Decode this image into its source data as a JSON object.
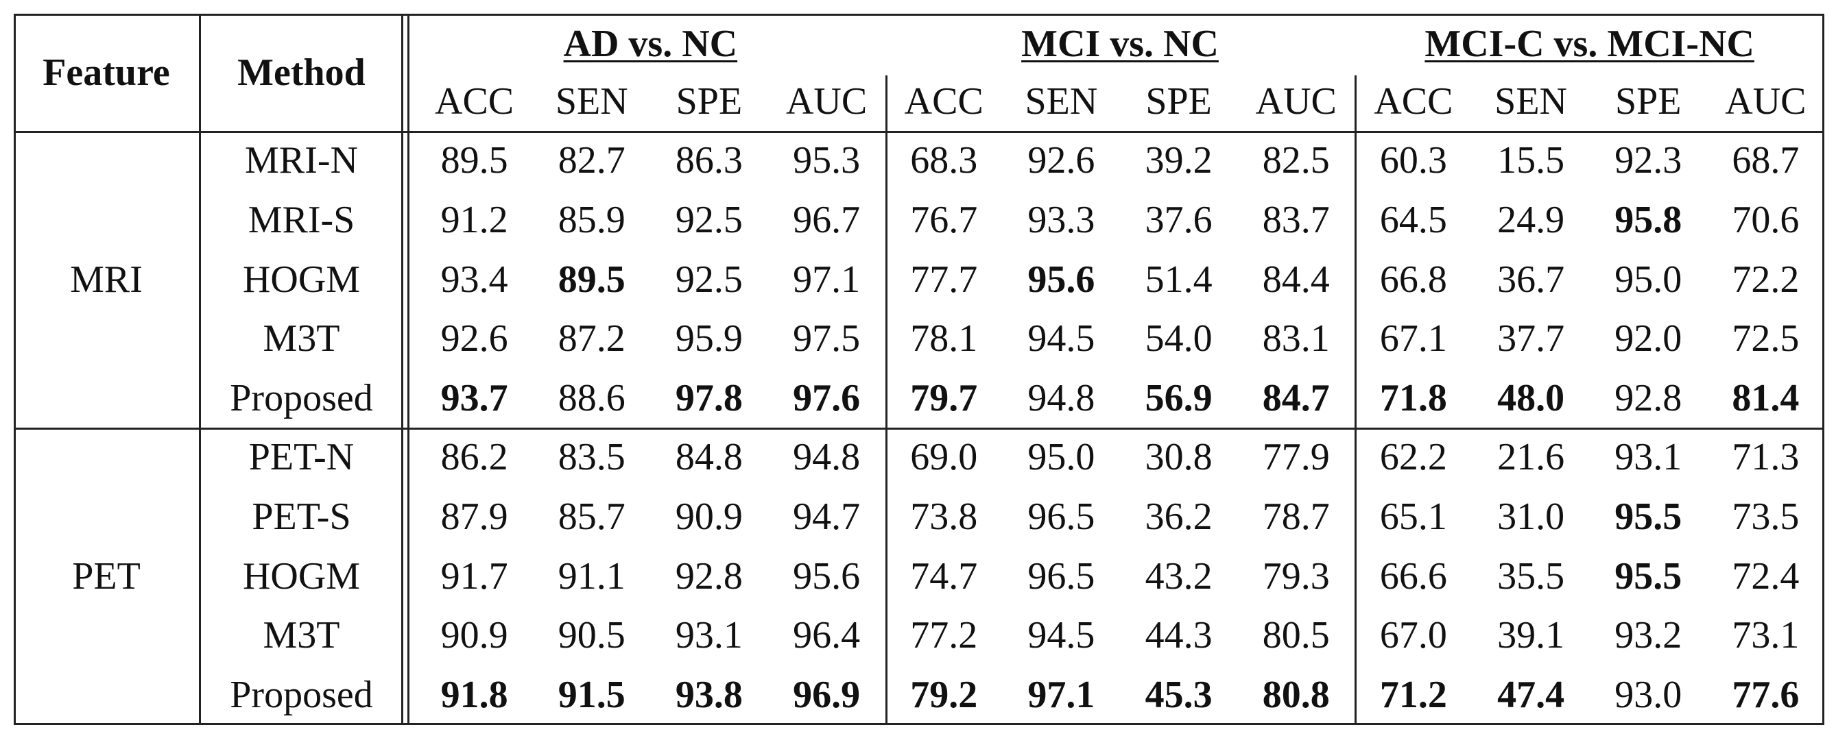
{
  "header": {
    "feature": "Feature",
    "method": "Method",
    "groups": [
      {
        "title": "AD vs. NC",
        "metrics": [
          "ACC",
          "SEN",
          "SPE",
          "AUC"
        ]
      },
      {
        "title": "MCI vs. NC",
        "metrics": [
          "ACC",
          "SEN",
          "SPE",
          "AUC"
        ]
      },
      {
        "title": "MCI-C vs. MCI-NC",
        "metrics": [
          "ACC",
          "SEN",
          "SPE",
          "AUC"
        ]
      }
    ]
  },
  "sections": [
    {
      "feature": "MRI",
      "rows": [
        {
          "method": "MRI-N",
          "values": [
            "89.5",
            "82.7",
            "86.3",
            "95.3",
            "68.3",
            "92.6",
            "39.2",
            "82.5",
            "60.3",
            "15.5",
            "92.3",
            "68.7"
          ],
          "bold": []
        },
        {
          "method": "MRI-S",
          "values": [
            "91.2",
            "85.9",
            "92.5",
            "96.7",
            "76.7",
            "93.3",
            "37.6",
            "83.7",
            "64.5",
            "24.9",
            "95.8",
            "70.6"
          ],
          "bold": [
            10
          ]
        },
        {
          "method": "HOGM",
          "values": [
            "93.4",
            "89.5",
            "92.5",
            "97.1",
            "77.7",
            "95.6",
            "51.4",
            "84.4",
            "66.8",
            "36.7",
            "95.0",
            "72.2"
          ],
          "bold": [
            1,
            5
          ]
        },
        {
          "method": "M3T",
          "values": [
            "92.6",
            "87.2",
            "95.9",
            "97.5",
            "78.1",
            "94.5",
            "54.0",
            "83.1",
            "67.1",
            "37.7",
            "92.0",
            "72.5"
          ],
          "bold": []
        },
        {
          "method": "Proposed",
          "values": [
            "93.7",
            "88.6",
            "97.8",
            "97.6",
            "79.7",
            "94.8",
            "56.9",
            "84.7",
            "71.8",
            "48.0",
            "92.8",
            "81.4"
          ],
          "bold": [
            0,
            2,
            3,
            4,
            6,
            7,
            8,
            9,
            11
          ]
        }
      ]
    },
    {
      "feature": "PET",
      "rows": [
        {
          "method": "PET-N",
          "values": [
            "86.2",
            "83.5",
            "84.8",
            "94.8",
            "69.0",
            "95.0",
            "30.8",
            "77.9",
            "62.2",
            "21.6",
            "93.1",
            "71.3"
          ],
          "bold": []
        },
        {
          "method": "PET-S",
          "values": [
            "87.9",
            "85.7",
            "90.9",
            "94.7",
            "73.8",
            "96.5",
            "36.2",
            "78.7",
            "65.1",
            "31.0",
            "95.5",
            "73.5"
          ],
          "bold": [
            10
          ]
        },
        {
          "method": "HOGM",
          "values": [
            "91.7",
            "91.1",
            "92.8",
            "95.6",
            "74.7",
            "96.5",
            "43.2",
            "79.3",
            "66.6",
            "35.5",
            "95.5",
            "72.4"
          ],
          "bold": [
            10
          ]
        },
        {
          "method": "M3T",
          "values": [
            "90.9",
            "90.5",
            "93.1",
            "96.4",
            "77.2",
            "94.5",
            "44.3",
            "80.5",
            "67.0",
            "39.1",
            "93.2",
            "73.1"
          ],
          "bold": []
        },
        {
          "method": "Proposed",
          "values": [
            "91.8",
            "91.5",
            "93.8",
            "96.9",
            "79.2",
            "97.1",
            "45.3",
            "80.8",
            "71.2",
            "47.4",
            "93.0",
            "77.6"
          ],
          "bold": [
            0,
            1,
            2,
            3,
            4,
            5,
            6,
            7,
            8,
            9,
            11
          ]
        }
      ]
    }
  ]
}
